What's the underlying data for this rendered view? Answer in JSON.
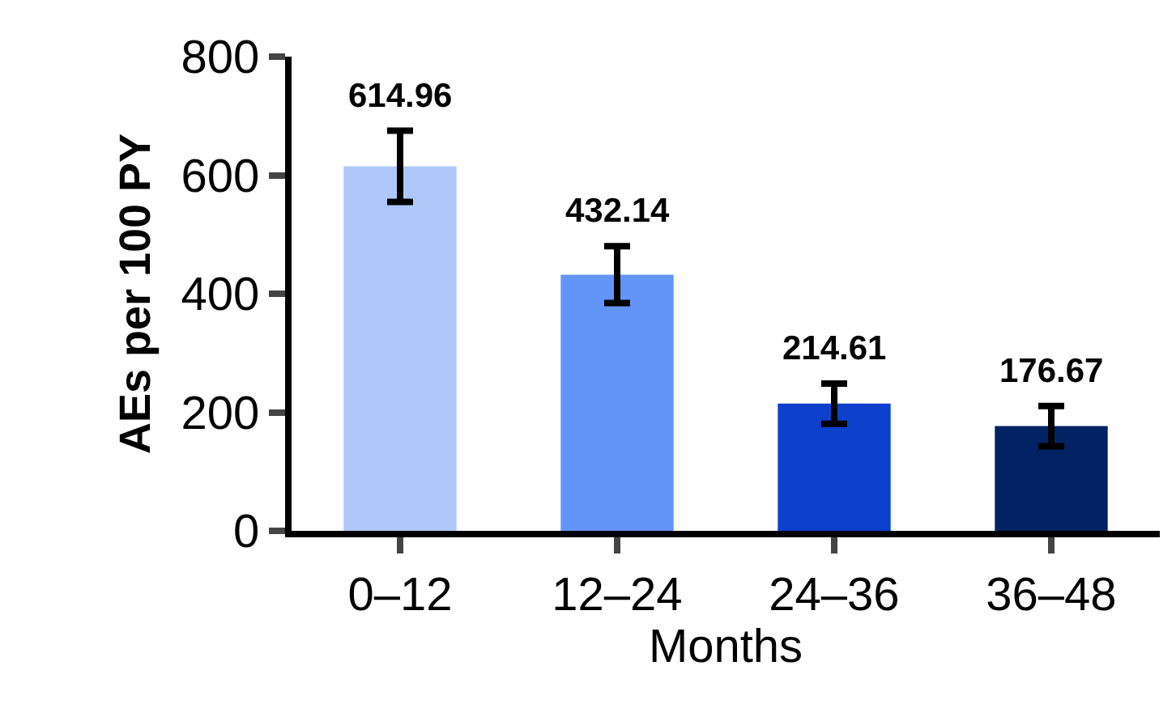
{
  "chart_data": {
    "type": "bar",
    "xlabel": "Months",
    "ylabel": "AEs per 100 PY",
    "categories": [
      "0–12",
      "12–24",
      "24–36",
      "36–48"
    ],
    "values": [
      614.96,
      432.14,
      214.61,
      176.67
    ],
    "colors": [
      "#afc8f9",
      "#6394f8",
      "#0d40cb",
      "#032263"
    ],
    "errors": [
      60,
      48,
      34,
      34
    ],
    "ylim": [
      0,
      800
    ],
    "yticks": [
      0,
      200,
      400,
      600,
      800
    ],
    "grid": false,
    "legend": false,
    "data_labels": true
  }
}
